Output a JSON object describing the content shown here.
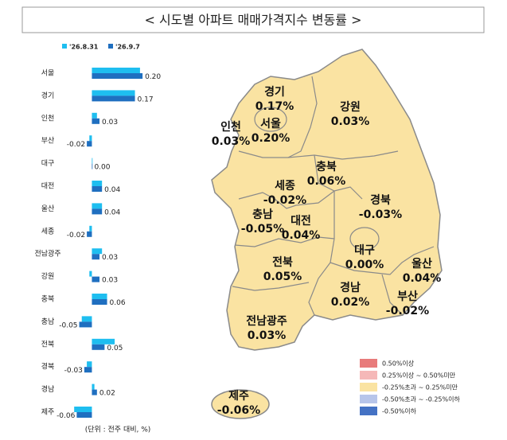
{
  "title": "< 시도별 아파트 매매가격지수 변동률 >",
  "note": "(단위 : 전주 대비, %)",
  "chart_data": {
    "type": "bar",
    "orientation": "horizontal",
    "categories": [
      "서울",
      "경기",
      "인천",
      "부산",
      "대구",
      "대전",
      "울산",
      "세종",
      "전남광주",
      "강원",
      "충북",
      "충남",
      "전북",
      "경북",
      "경남",
      "제주"
    ],
    "series": [
      {
        "name": "'26.8.31",
        "color": "#1ebef0",
        "values": [
          0.19,
          0.17,
          0.02,
          -0.01,
          0.0,
          0.04,
          0.04,
          -0.01,
          0.04,
          -0.01,
          0.06,
          -0.04,
          0.09,
          -0.02,
          0.01,
          -0.07
        ]
      },
      {
        "name": "'26.9.7",
        "color": "#1f6fc0",
        "values": [
          0.2,
          0.17,
          0.03,
          -0.02,
          0.0,
          0.04,
          0.04,
          -0.02,
          0.03,
          0.03,
          0.06,
          -0.05,
          0.05,
          -0.03,
          0.02,
          -0.06
        ],
        "value_labels": [
          "0.20",
          "0.17",
          "0.03",
          "-0.02",
          "0.00",
          "0.04",
          "0.04",
          "-0.02",
          "0.03",
          "0.03",
          "0.06",
          "-0.05",
          "0.05",
          "-0.03",
          "0.02",
          "-0.06"
        ]
      }
    ],
    "xlim": [
      -0.3,
      0.25
    ]
  },
  "map": {
    "regions": [
      {
        "name": "경기",
        "value": 0.17,
        "value_label": "0.17%"
      },
      {
        "name": "인천",
        "value": 0.03,
        "value_label": "0.03%"
      },
      {
        "name": "서울",
        "value": 0.2,
        "value_label": "0.20%"
      },
      {
        "name": "강원",
        "value": 0.03,
        "value_label": "0.03%"
      },
      {
        "name": "충북",
        "value": 0.06,
        "value_label": "0.06%"
      },
      {
        "name": "세종",
        "value": -0.02,
        "value_label": "-0.02%"
      },
      {
        "name": "경북",
        "value": -0.03,
        "value_label": "-0.03%"
      },
      {
        "name": "충남",
        "value": -0.05,
        "value_label": "-0.05%"
      },
      {
        "name": "대전",
        "value": 0.04,
        "value_label": "0.04%"
      },
      {
        "name": "대구",
        "value": 0.0,
        "value_label": "0.00%"
      },
      {
        "name": "울산",
        "value": 0.04,
        "value_label": "0.04%"
      },
      {
        "name": "전북",
        "value": 0.05,
        "value_label": "0.05%"
      },
      {
        "name": "경남",
        "value": 0.02,
        "value_label": "0.02%"
      },
      {
        "name": "부산",
        "value": -0.02,
        "value_label": "-0.02%"
      },
      {
        "name": "전남광주",
        "value": 0.03,
        "value_label": "0.03%"
      },
      {
        "name": "제주",
        "value": -0.06,
        "value_label": "-0.06%"
      }
    ],
    "legend": [
      {
        "label": "0.50%이상",
        "color": "#e87b7b"
      },
      {
        "label": "0.25%이상 ~ 0.50%미만",
        "color": "#f5b8b8"
      },
      {
        "label": "-0.25%초과 ~ 0.25%미만",
        "color": "#fae3a2"
      },
      {
        "label": "-0.50%초과 ~ -0.25%이하",
        "color": "#b7c5ea"
      },
      {
        "label": "-0.50%이하",
        "color": "#4472c4"
      }
    ]
  }
}
